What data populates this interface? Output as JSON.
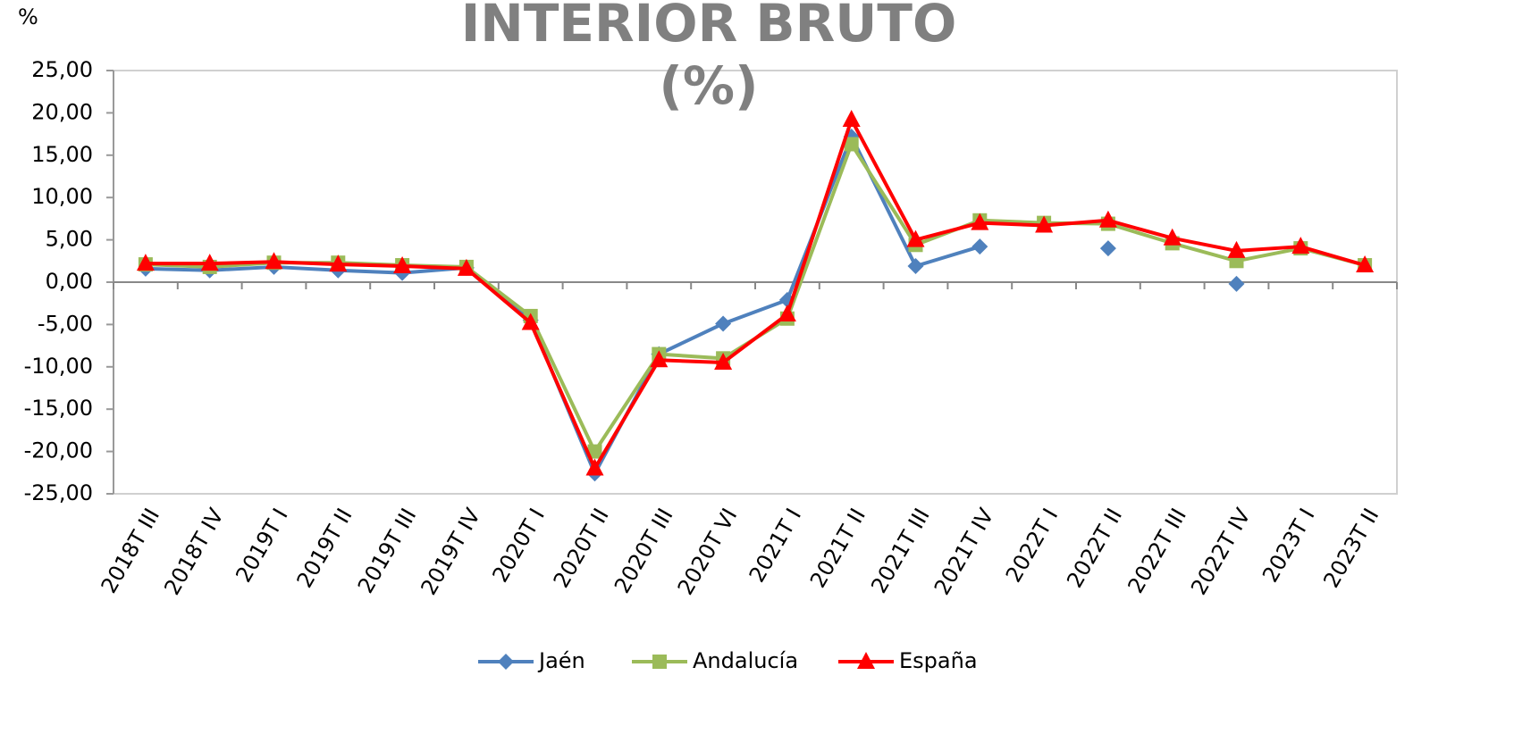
{
  "chart_data": {
    "type": "line",
    "title": [
      "INTERIOR BRUTO",
      "(%)"
    ],
    "y_label": "%",
    "categories": [
      "2018T III",
      "2018T IV",
      "2019T I",
      "2019T II",
      "2019T III",
      "2019T IV",
      "2020T I",
      "2020T II",
      "2020T III",
      "2020T VI",
      "2021T I",
      "2021T II",
      "2021T III",
      "2021T IV",
      "2022T I",
      "2022T II",
      "2022T III",
      "2022T IV",
      "2023T I",
      "2023T II"
    ],
    "series": [
      {
        "name": "Jaén",
        "color": "#4f81bd",
        "marker": "diamond",
        "values": [
          1.6,
          1.4,
          1.8,
          1.4,
          1.1,
          1.7,
          -4.5,
          -22.6,
          -8.5,
          -4.9,
          -2.1,
          17.2,
          1.9,
          4.2,
          null,
          4.0,
          null,
          -0.2,
          null,
          null
        ]
      },
      {
        "name": "Andalucía",
        "color": "#9bbb59",
        "marker": "square",
        "values": [
          2.1,
          1.8,
          2.3,
          2.3,
          2.0,
          1.8,
          -4.0,
          -20.0,
          -8.5,
          -9.0,
          -4.3,
          16.3,
          4.4,
          7.3,
          7.0,
          6.9,
          4.6,
          2.5,
          4.0,
          2.0
        ]
      },
      {
        "name": "España",
        "color": "#ff0000",
        "marker": "triangle",
        "values": [
          2.2,
          2.2,
          2.4,
          2.1,
          1.9,
          1.6,
          -4.8,
          -22.0,
          -9.2,
          -9.5,
          -3.8,
          19.2,
          5.0,
          7.0,
          6.7,
          7.3,
          5.2,
          3.7,
          4.2,
          2.0
        ]
      }
    ],
    "ylim": [
      -25,
      25
    ],
    "yticks": [
      {
        "value": -25,
        "label": "-25,00"
      },
      {
        "value": -20,
        "label": "-20,00"
      },
      {
        "value": -15,
        "label": "-15,00"
      },
      {
        "value": -10,
        "label": "-10,00"
      },
      {
        "value": -5,
        "label": "-5,00"
      },
      {
        "value": 0,
        "label": "0,00"
      },
      {
        "value": 5,
        "label": "5,00"
      },
      {
        "value": 10,
        "label": "10,00"
      },
      {
        "value": 15,
        "label": "15,00"
      },
      {
        "value": 20,
        "label": "20,00"
      },
      {
        "value": 25,
        "label": "25,00"
      }
    ],
    "legend": "bottom"
  }
}
